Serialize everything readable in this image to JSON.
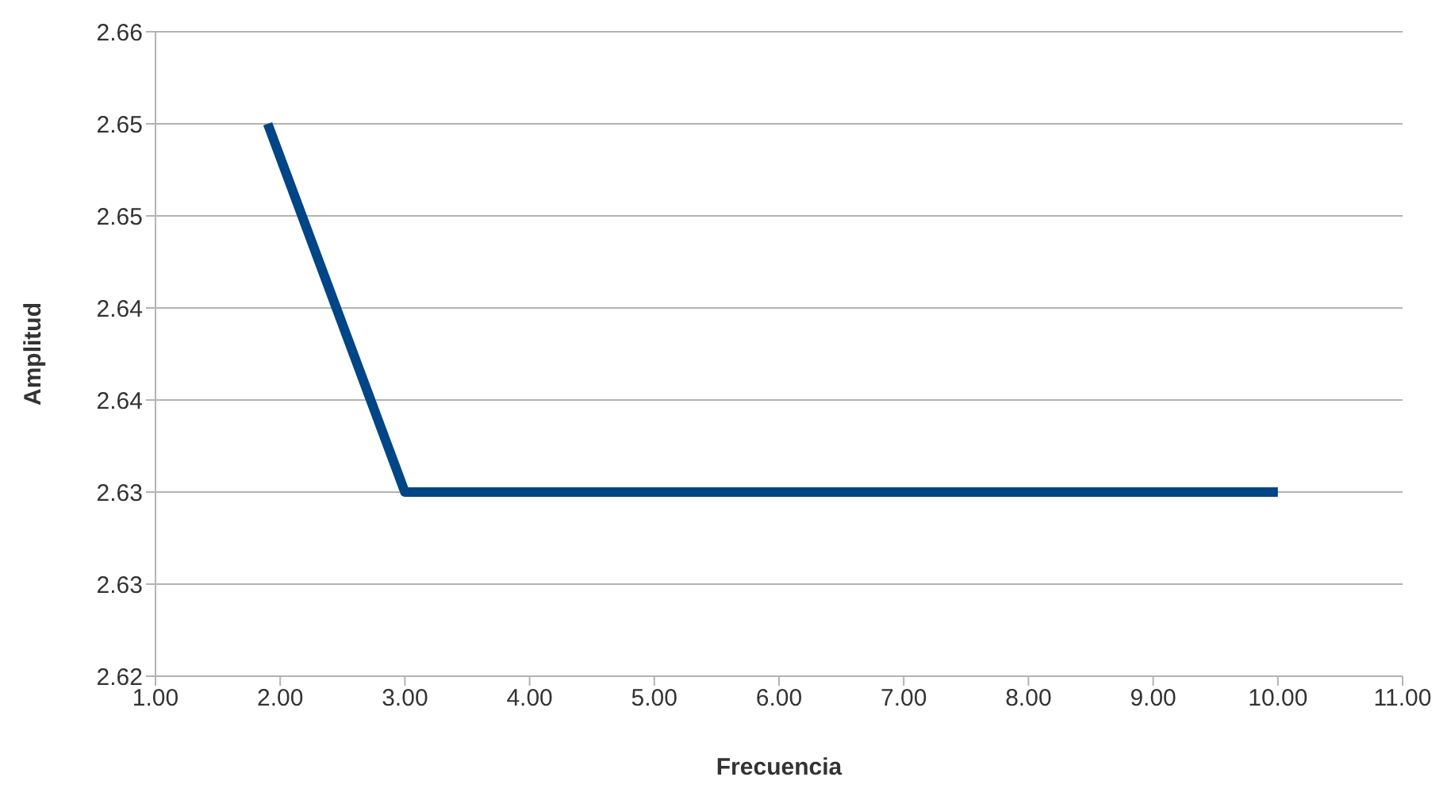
{
  "chart_data": {
    "type": "line",
    "xlabel": "Frecuencia",
    "ylabel": "Amplitud",
    "x": [
      1.9,
      3,
      10
    ],
    "series": [
      {
        "color": "#004586",
        "values": [
          2.6525,
          2.6325,
          2.6325
        ]
      }
    ],
    "xlim": [
      1,
      11
    ],
    "xticks": [
      {
        "value": 1,
        "label": "1.00"
      },
      {
        "value": 2,
        "label": "2.00"
      },
      {
        "value": 3,
        "label": "3.00"
      },
      {
        "value": 4,
        "label": "4.00"
      },
      {
        "value": 5,
        "label": "5.00"
      },
      {
        "value": 6,
        "label": "6.00"
      },
      {
        "value": 7,
        "label": "7.00"
      },
      {
        "value": 8,
        "label": "8.00"
      },
      {
        "value": 9,
        "label": "9.00"
      },
      {
        "value": 10,
        "label": "10.00"
      },
      {
        "value": 11,
        "label": "11.00"
      }
    ],
    "ylim": [
      2.6225,
      2.6575
    ],
    "yticks": [
      {
        "value": 2.6225,
        "label": "2.62"
      },
      {
        "value": 2.6275,
        "label": "2.63"
      },
      {
        "value": 2.6325,
        "label": "2.63"
      },
      {
        "value": 2.6375,
        "label": "2.64"
      },
      {
        "value": 2.6425,
        "label": "2.64"
      },
      {
        "value": 2.6475,
        "label": "2.65"
      },
      {
        "value": 2.6525,
        "label": "2.65"
      },
      {
        "value": 2.6575,
        "label": "2.66"
      }
    ],
    "grid": "y",
    "legend": false,
    "marker": "none",
    "line_style": "solid"
  }
}
